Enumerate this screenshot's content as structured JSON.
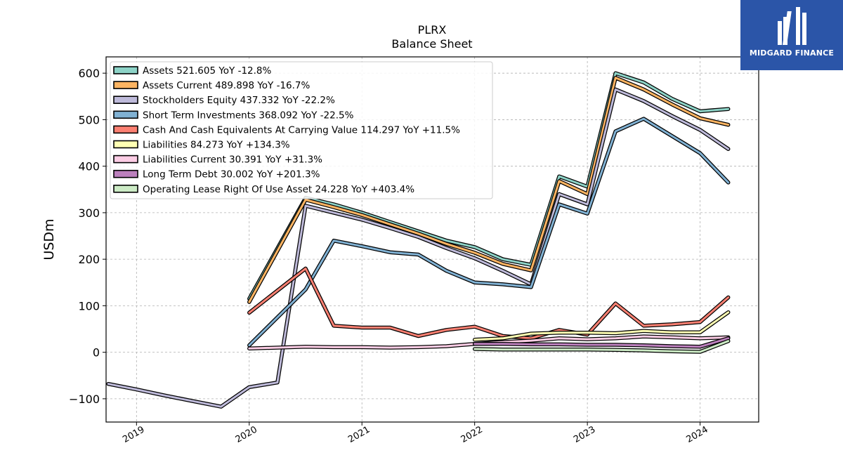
{
  "logo": {
    "text": "MIDGARD FINANCE",
    "background": "#2b55a8"
  },
  "chart_data": {
    "type": "line",
    "title": "PLRX",
    "subtitle": "Balance  Sheet",
    "ylabel": "USDm",
    "ylim": [
      -150,
      635
    ],
    "xlim": [
      2018.73,
      2024.52
    ],
    "yticks": [
      -100,
      0,
      100,
      200,
      300,
      400,
      500,
      600
    ],
    "ytick_labels": [
      "−100",
      "0",
      "100",
      "200",
      "300",
      "400",
      "500",
      "600"
    ],
    "xticks": [
      2019,
      2020,
      2021,
      2022,
      2023,
      2024
    ],
    "xtick_labels": [
      "2019",
      "2020",
      "2021",
      "2022",
      "2023",
      "2024"
    ],
    "grid": true,
    "legend_position": "top-left",
    "series": [
      {
        "name": "Assets",
        "legend": "Assets  521.605 YoY -12.8%",
        "color": "#8dd3c7",
        "x": [
          2020.0,
          2020.5,
          2020.75,
          2021.0,
          2021.25,
          2021.5,
          2021.75,
          2022.0,
          2022.25,
          2022.5,
          2022.75,
          2023.0,
          2023.25,
          2023.5,
          2023.75,
          2024.0,
          2024.25
        ],
        "y": [
          115,
          332,
          318,
          300,
          280,
          260,
          240,
          226,
          200,
          188,
          378,
          356,
          600,
          580,
          545,
          518,
          523
        ]
      },
      {
        "name": "Assets Current",
        "legend": "Assets Current  489.898 YoY -16.7%",
        "color": "#fdb462",
        "x": [
          2020.0,
          2020.5,
          2020.75,
          2021.0,
          2021.25,
          2021.5,
          2021.75,
          2022.0,
          2022.25,
          2022.5,
          2022.75,
          2023.0,
          2023.25,
          2023.5,
          2023.75,
          2024.0,
          2024.25
        ],
        "y": [
          108,
          328,
          312,
          295,
          275,
          255,
          233,
          214,
          190,
          176,
          368,
          340,
          590,
          565,
          533,
          503,
          489
        ]
      },
      {
        "name": "Stockholders Equity",
        "legend": "Stockholders Equity  437.332 YoY -22.2%",
        "color": "#bebada",
        "x": [
          2018.75,
          2019.0,
          2019.25,
          2019.5,
          2019.75,
          2020.0,
          2020.25,
          2020.5,
          2020.75,
          2021.0,
          2021.25,
          2021.5,
          2021.75,
          2022.0,
          2022.25,
          2022.5,
          2022.75,
          2023.0,
          2023.25,
          2023.5,
          2023.75,
          2024.0,
          2024.25
        ],
        "y": [
          -68,
          -80,
          -93,
          -105,
          -117,
          -75,
          -65,
          315,
          300,
          285,
          267,
          248,
          224,
          202,
          175,
          146,
          340,
          318,
          565,
          540,
          508,
          478,
          437
        ]
      },
      {
        "name": "Short Term Investments",
        "legend": "Short Term Investments  368.092 YoY -22.5%",
        "color": "#80b1d3",
        "x": [
          2020.0,
          2020.5,
          2020.75,
          2021.0,
          2021.25,
          2021.5,
          2021.75,
          2022.0,
          2022.25,
          2022.5,
          2022.75,
          2023.0,
          2023.25,
          2023.5,
          2023.75,
          2024.0,
          2024.25
        ],
        "y": [
          15,
          135,
          240,
          228,
          215,
          210,
          175,
          150,
          146,
          140,
          318,
          298,
          475,
          502,
          465,
          428,
          365
        ]
      },
      {
        "name": "Cash And Cash Equivalents At Carrying Value",
        "legend": "Cash And Cash Equivalents At Carrying Value  114.297 YoY +11.5%",
        "color": "#fb8072",
        "x": [
          2020.0,
          2020.5,
          2020.75,
          2021.0,
          2021.25,
          2021.5,
          2021.75,
          2022.0,
          2022.25,
          2022.5,
          2022.75,
          2023.0,
          2023.25,
          2023.5,
          2023.75,
          2024.0,
          2024.25
        ],
        "y": [
          85,
          180,
          57,
          53,
          53,
          35,
          48,
          55,
          35,
          30,
          48,
          38,
          105,
          57,
          60,
          65,
          118
        ]
      },
      {
        "name": "Liabilities",
        "legend": "Liabilities  84.273 YoY +134.3%",
        "color": "#ffffb3",
        "x": [
          2022.0,
          2022.25,
          2022.5,
          2022.75,
          2023.0,
          2023.25,
          2023.5,
          2023.75,
          2024.0,
          2024.25
        ],
        "y": [
          27,
          30,
          40,
          42,
          42,
          41,
          46,
          43,
          43,
          86
        ]
      },
      {
        "name": "Liabilities Current",
        "legend": "Liabilities Current  30.391 YoY +31.3%",
        "color": "#fccde5",
        "x": [
          2020.0,
          2020.5,
          2020.75,
          2021.0,
          2021.25,
          2021.5,
          2021.75,
          2022.0,
          2022.25,
          2022.5,
          2022.75,
          2023.0,
          2023.25,
          2023.5,
          2023.75,
          2024.0,
          2024.25
        ],
        "y": [
          8,
          12,
          11,
          11,
          10,
          11,
          13,
          18,
          22,
          25,
          30,
          28,
          30,
          34,
          32,
          30,
          32
        ]
      },
      {
        "name": "Long Term Debt",
        "legend": "Long Term Debt  30.002 YoY +201.3%",
        "color": "#bc80bd",
        "x": [
          2022.0,
          2022.25,
          2022.5,
          2022.75,
          2023.0,
          2023.25,
          2023.5,
          2023.75,
          2024.0,
          2024.25
        ],
        "y": [
          18,
          18,
          17,
          17,
          16,
          16,
          15,
          13,
          12,
          30
        ]
      },
      {
        "name": "Operating Lease Right Of Use Asset",
        "legend": "Operating Lease Right Of Use Asset  24.228 YoY +403.4%",
        "color": "#ccebc5",
        "x": [
          2022.0,
          2022.25,
          2022.5,
          2022.75,
          2023.0,
          2023.25,
          2023.5,
          2023.75,
          2024.0,
          2024.25
        ],
        "y": [
          7,
          6,
          6,
          6,
          6,
          5,
          4,
          2,
          1,
          24
        ]
      }
    ]
  }
}
